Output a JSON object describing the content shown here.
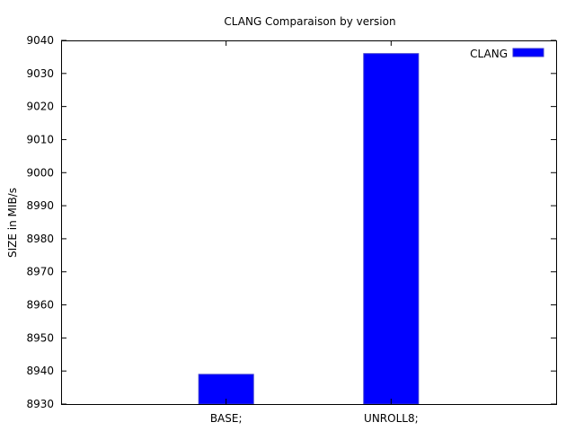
{
  "chart_data": {
    "type": "bar",
    "title": "CLANG Comparaison by version",
    "xlabel": "",
    "ylabel": "SIZE in MIB/s",
    "categories": [
      "BASE;",
      "UNROLL8;"
    ],
    "series": [
      {
        "name": "CLANG",
        "color": "#0000ff",
        "values": [
          8939,
          9036
        ]
      }
    ],
    "ylim": [
      8930,
      9040
    ],
    "yticks": [
      8930,
      8940,
      8950,
      8960,
      8970,
      8980,
      8990,
      9000,
      9010,
      9020,
      9030,
      9040
    ],
    "grid": false,
    "legend_position": "top-right"
  }
}
